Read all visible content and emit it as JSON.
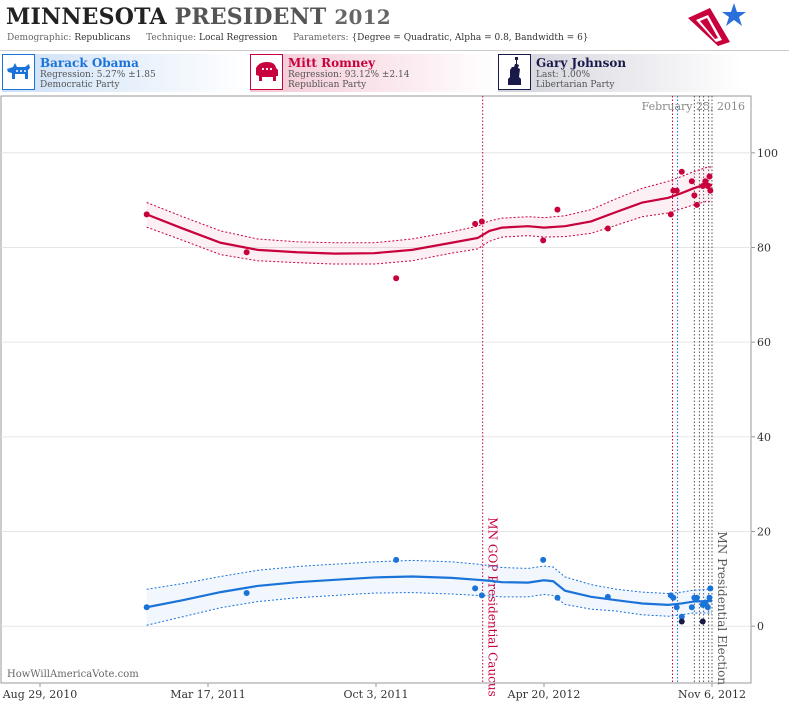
{
  "header": {
    "title_state": "MINNESOTA",
    "title_office": "PRESIDENT",
    "title_year": "2012",
    "demographic_label": "Demographic:",
    "demographic_value": "Republicans",
    "technique_label": "Technique:",
    "technique_value": "Local Regression",
    "parameters_label": "Parameters:",
    "parameters_value": "{Degree = Quadratic, Alpha = 0.8, Bandwidth = 6}"
  },
  "candidates": [
    {
      "name": "Barack Obama",
      "stat": "Regression: 5.27% ±1.85",
      "party": "Democratic Party",
      "color": "#1a73d9",
      "icon": "donkey-icon"
    },
    {
      "name": "Mitt Romney",
      "stat": "Regression: 93.12% ±2.14",
      "party": "Republican Party",
      "color": "#c8003c",
      "icon": "elephant-icon"
    },
    {
      "name": "Gary Johnson",
      "stat": "Last: 1.00%",
      "party": "Libertarian Party",
      "color": "#1a1a4a",
      "icon": "statue-of-liberty-icon"
    }
  ],
  "chart_data": {
    "type": "line",
    "date_stamp": "February 25, 2016",
    "watermark": "HowWillAmericaVote.com",
    "x_ticks": [
      "2010-08-29",
      "2011-03-17",
      "2011-10-03",
      "2012-04-20",
      "2012-11-06"
    ],
    "x_tick_labels": [
      "Aug 29, 2010",
      "Mar 17, 2011",
      "Oct 3, 2011",
      "Apr 20, 2012",
      "Nov 6, 2012"
    ],
    "xlim": [
      "2010-08-29",
      "2012-11-30"
    ],
    "ylim": [
      -12,
      112
    ],
    "y_ticks": [
      0,
      20,
      40,
      60,
      80,
      100
    ],
    "annotations": [
      {
        "date": "2012-02-07",
        "label": "MN GOP Presidential Caucus",
        "color": "#c8003c"
      },
      {
        "date": "2012-11-06",
        "label": "MN Presidential Election",
        "color": "#555555"
      }
    ],
    "poll_markers": [
      {
        "date": "2012-09-20",
        "color": "#c8003c"
      },
      {
        "date": "2012-09-26",
        "color": "#1a73d9"
      },
      {
        "date": "2012-10-16",
        "color": "#555555"
      },
      {
        "date": "2012-10-22",
        "color": "#555555"
      },
      {
        "date": "2012-10-27",
        "color": "#555555"
      },
      {
        "date": "2012-11-02",
        "color": "#555555"
      }
    ],
    "series": [
      {
        "name": "Mitt Romney",
        "color": "#c8003c",
        "trend_x": [
          "2011-01-03",
          "2011-02-15",
          "2011-04-01",
          "2011-05-15",
          "2011-07-01",
          "2011-08-15",
          "2011-10-01",
          "2011-11-15",
          "2012-01-01",
          "2012-02-01",
          "2012-02-15",
          "2012-03-01",
          "2012-04-01",
          "2012-04-20",
          "2012-05-15",
          "2012-06-15",
          "2012-07-15",
          "2012-08-15",
          "2012-09-15",
          "2012-10-01",
          "2012-10-15",
          "2012-11-01",
          "2012-11-06"
        ],
        "trend_y": [
          87,
          84,
          81,
          79.5,
          79,
          78.7,
          78.8,
          79.5,
          81,
          82,
          83.5,
          84.2,
          84.5,
          84.2,
          84.5,
          85.5,
          87.5,
          89.5,
          90.5,
          91.5,
          92.5,
          93.5,
          93.1
        ],
        "upper": [
          89.5,
          86.5,
          83.5,
          81.8,
          81.2,
          81,
          81,
          81.8,
          83.3,
          84.5,
          85.6,
          86.2,
          86.5,
          86.3,
          86.7,
          88,
          90.3,
          92.5,
          94,
          95,
          96,
          97,
          97
        ],
        "lower": [
          84.3,
          81.5,
          78.5,
          77.2,
          76.8,
          76.5,
          76.5,
          77.2,
          78.8,
          79.7,
          81.3,
          82.2,
          82.5,
          82.2,
          82.3,
          83,
          84.7,
          86.5,
          87.3,
          88.2,
          89,
          89.8,
          89.5
        ],
        "points_x": [
          "2011-01-03",
          "2011-05-02",
          "2011-10-27",
          "2012-01-29",
          "2012-02-06",
          "2012-04-19",
          "2012-05-06",
          "2012-07-05",
          "2012-09-18",
          "2012-09-21",
          "2012-09-25",
          "2012-10-01",
          "2012-10-13",
          "2012-10-16",
          "2012-10-19",
          "2012-10-26",
          "2012-10-29",
          "2012-11-01",
          "2012-11-03",
          "2012-11-04"
        ],
        "points_y": [
          87,
          79,
          73.5,
          85,
          85.5,
          81.5,
          88,
          84,
          87,
          92,
          92,
          96,
          94,
          91,
          89,
          93,
          94,
          93,
          95,
          92
        ]
      },
      {
        "name": "Barack Obama",
        "color": "#1a73d9",
        "trend_x": [
          "2011-01-03",
          "2011-02-15",
          "2011-04-01",
          "2011-05-15",
          "2011-07-01",
          "2011-08-15",
          "2011-10-01",
          "2011-11-15",
          "2012-01-01",
          "2012-02-01",
          "2012-02-15",
          "2012-03-01",
          "2012-04-01",
          "2012-04-20",
          "2012-05-01",
          "2012-05-15",
          "2012-06-15",
          "2012-07-15",
          "2012-08-15",
          "2012-09-15",
          "2012-10-01",
          "2012-10-15",
          "2012-11-01",
          "2012-11-06"
        ],
        "trend_y": [
          4,
          5.5,
          7.2,
          8.5,
          9.3,
          9.8,
          10.3,
          10.5,
          10.2,
          9.8,
          9.6,
          9.3,
          9.2,
          9.7,
          9.5,
          7.5,
          6.2,
          5.5,
          4.8,
          4.5,
          4.8,
          5.2,
          5.3,
          5.3
        ],
        "upper": [
          7.8,
          9,
          10.5,
          11.8,
          12.6,
          13.1,
          13.6,
          13.9,
          13.6,
          13.1,
          12.8,
          12.4,
          12.2,
          12.7,
          12.5,
          10.4,
          8.8,
          7.8,
          7.2,
          6.9,
          7.2,
          7.6,
          7.8,
          7.8
        ],
        "lower": [
          0.2,
          2,
          3.9,
          5.2,
          6,
          6.5,
          7,
          7.1,
          6.8,
          6.5,
          6.4,
          6.2,
          6.2,
          6.7,
          6.5,
          4.6,
          3.6,
          3.2,
          2.4,
          2.1,
          2.4,
          2.8,
          2.8,
          2.8
        ],
        "points_x": [
          "2011-01-03",
          "2011-05-02",
          "2011-10-27",
          "2012-01-29",
          "2012-02-06",
          "2012-04-19",
          "2012-05-06",
          "2012-07-05",
          "2012-09-18",
          "2012-09-21",
          "2012-09-25",
          "2012-10-01",
          "2012-10-13",
          "2012-10-16",
          "2012-10-19",
          "2012-10-26",
          "2012-10-29",
          "2012-11-01",
          "2012-11-03",
          "2012-11-04"
        ],
        "points_y": [
          4,
          7,
          14,
          8,
          6.5,
          14,
          6,
          6.2,
          6.5,
          6,
          4,
          2,
          4,
          6,
          6,
          4.5,
          5,
          4,
          6,
          8
        ]
      },
      {
        "name": "Gary Johnson",
        "color": "#1a1a4a",
        "points_x": [
          "2012-10-01",
          "2012-10-26"
        ],
        "points_y": [
          1,
          1
        ]
      }
    ]
  }
}
